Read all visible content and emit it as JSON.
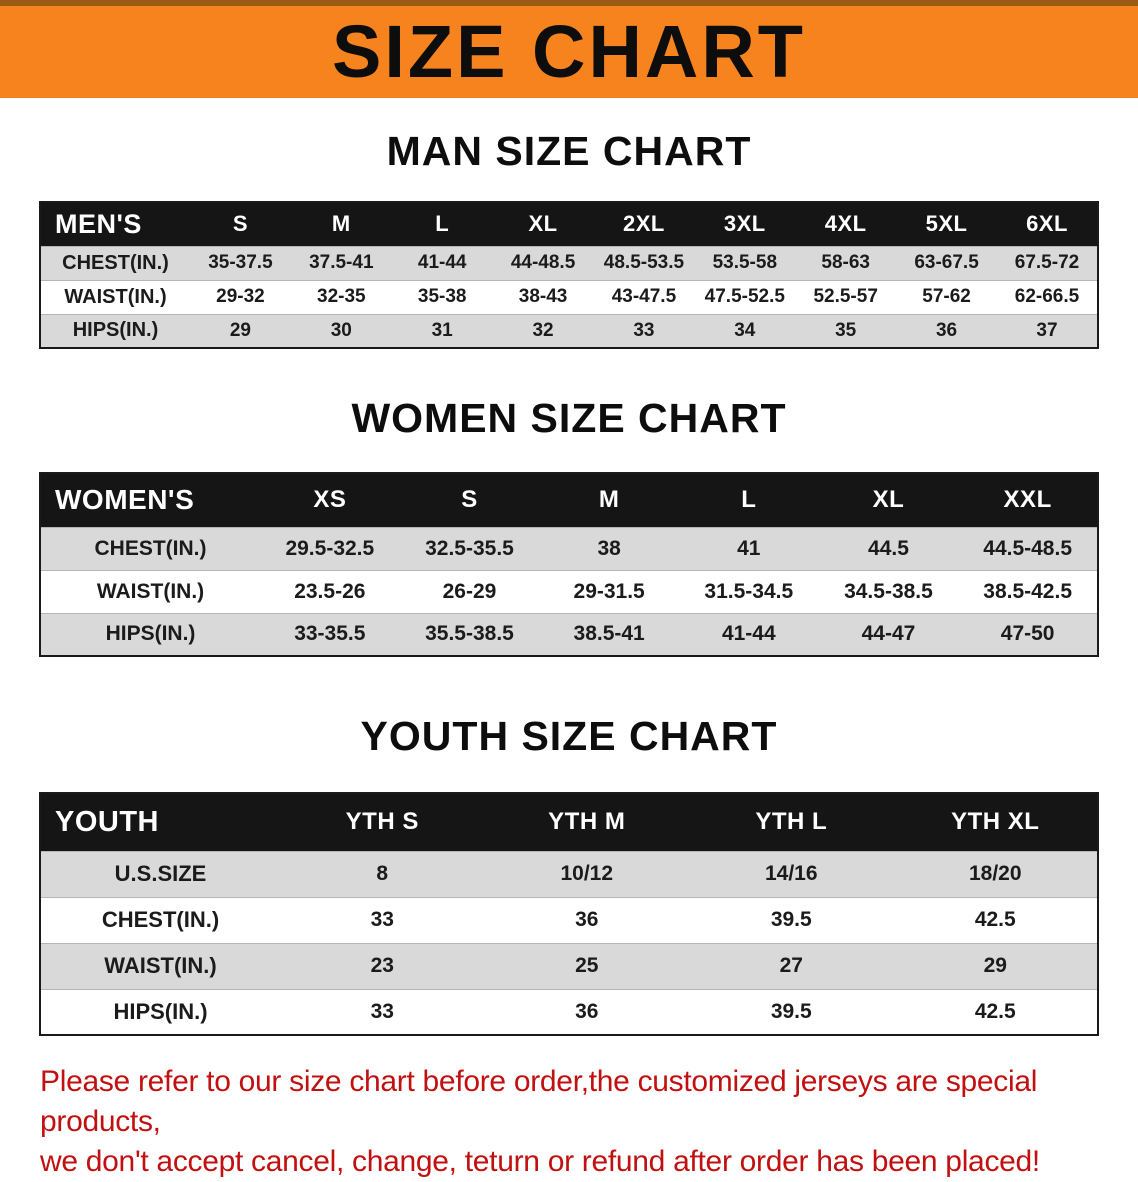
{
  "banner": {
    "title": "SIZE CHART"
  },
  "colors": {
    "banner_bg": "#f6831d",
    "table_header_bg": "#151515",
    "row_stripe": "#d9d9d9",
    "footer_text": "#c21010"
  },
  "sections": [
    {
      "title": "MAN SIZE CHART",
      "table": {
        "header": [
          "MEN'S",
          "S",
          "M",
          "L",
          "XL",
          "2XL",
          "3XL",
          "4XL",
          "5XL",
          "6XL"
        ],
        "rows": [
          [
            "CHEST(IN.)",
            "35-37.5",
            "37.5-41",
            "41-44",
            "44-48.5",
            "48.5-53.5",
            "53.5-58",
            "58-63",
            "63-67.5",
            "67.5-72"
          ],
          [
            "WAIST(IN.)",
            "29-32",
            "32-35",
            "35-38",
            "38-43",
            "43-47.5",
            "47.5-52.5",
            "52.5-57",
            "57-62",
            "62-66.5"
          ],
          [
            "HIPS(IN.)",
            "29",
            "30",
            "31",
            "32",
            "33",
            "34",
            "35",
            "36",
            "37"
          ]
        ]
      }
    },
    {
      "title": "WOMEN SIZE CHART",
      "table": {
        "header": [
          "WOMEN'S",
          "XS",
          "S",
          "M",
          "L",
          "XL",
          "XXL"
        ],
        "rows": [
          [
            "CHEST(IN.)",
            "29.5-32.5",
            "32.5-35.5",
            "38",
            "41",
            "44.5",
            "44.5-48.5"
          ],
          [
            "WAIST(IN.)",
            "23.5-26",
            "26-29",
            "29-31.5",
            "31.5-34.5",
            "34.5-38.5",
            "38.5-42.5"
          ],
          [
            "HIPS(IN.)",
            "33-35.5",
            "35.5-38.5",
            "38.5-41",
            "41-44",
            "44-47",
            "47-50"
          ]
        ]
      }
    },
    {
      "title": "YOUTH SIZE CHART",
      "table": {
        "header": [
          "YOUTH",
          "YTH S",
          "YTH M",
          "YTH L",
          "YTH XL"
        ],
        "rows": [
          [
            "U.S.SIZE",
            "8",
            "10/12",
            "14/16",
            "18/20"
          ],
          [
            "CHEST(IN.)",
            "33",
            "36",
            "39.5",
            "42.5"
          ],
          [
            "WAIST(IN.)",
            "23",
            "25",
            "27",
            "29"
          ],
          [
            "HIPS(IN.)",
            "33",
            "36",
            "39.5",
            "42.5"
          ]
        ]
      }
    }
  ],
  "footer": {
    "line1": "Please refer to our size chart before order,the customized jerseys are special products,",
    "line2": "we don't accept cancel, change, teturn or refund after order has been placed!"
  }
}
